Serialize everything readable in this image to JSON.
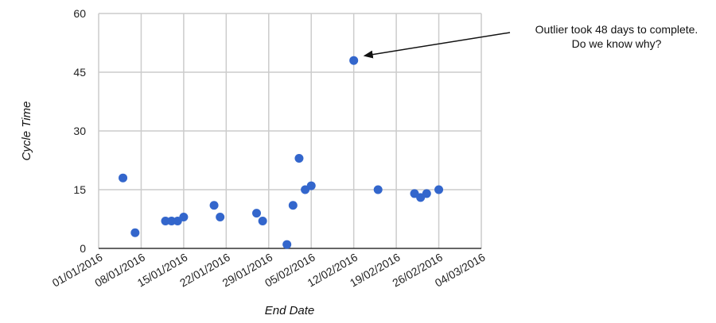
{
  "chart_data": {
    "type": "scatter",
    "xlabel": "End Date",
    "ylabel": "Cycle Time",
    "x_ticks": [
      "01/01/2016",
      "08/01/2016",
      "15/01/2016",
      "22/01/2016",
      "29/01/2016",
      "05/02/2016",
      "12/02/2016",
      "19/02/2016",
      "26/02/2016",
      "04/03/2016"
    ],
    "xlim": [
      "2016-01-01",
      "2016-03-04"
    ],
    "ylim": [
      0,
      60
    ],
    "y_ticks": [
      0,
      15,
      30,
      45,
      60
    ],
    "grid": true,
    "series": [
      {
        "color": "#3366cc",
        "points": [
          {
            "x": "2016-01-05",
            "y": 18
          },
          {
            "x": "2016-01-07",
            "y": 4
          },
          {
            "x": "2016-01-12",
            "y": 7
          },
          {
            "x": "2016-01-13",
            "y": 7
          },
          {
            "x": "2016-01-14",
            "y": 7
          },
          {
            "x": "2016-01-15",
            "y": 8
          },
          {
            "x": "2016-01-20",
            "y": 11
          },
          {
            "x": "2016-01-21",
            "y": 8
          },
          {
            "x": "2016-01-27",
            "y": 9
          },
          {
            "x": "2016-01-28",
            "y": 7
          },
          {
            "x": "2016-02-01",
            "y": 1
          },
          {
            "x": "2016-02-02",
            "y": 11
          },
          {
            "x": "2016-02-03",
            "y": 23
          },
          {
            "x": "2016-02-04",
            "y": 15
          },
          {
            "x": "2016-02-05",
            "y": 16
          },
          {
            "x": "2016-02-12",
            "y": 48
          },
          {
            "x": "2016-02-16",
            "y": 15
          },
          {
            "x": "2016-02-22",
            "y": 14
          },
          {
            "x": "2016-02-23",
            "y": 13
          },
          {
            "x": "2016-02-24",
            "y": 14
          },
          {
            "x": "2016-02-26",
            "y": 15
          }
        ]
      }
    ],
    "annotations": [
      {
        "lines": [
          "Outlier took 48 days to complete.",
          "Do we know why?"
        ],
        "target": {
          "x": "2016-02-12",
          "y": 48
        }
      }
    ]
  },
  "colors": {
    "grid": "#cccccc",
    "axis": "#333333",
    "point": "#3366cc"
  }
}
